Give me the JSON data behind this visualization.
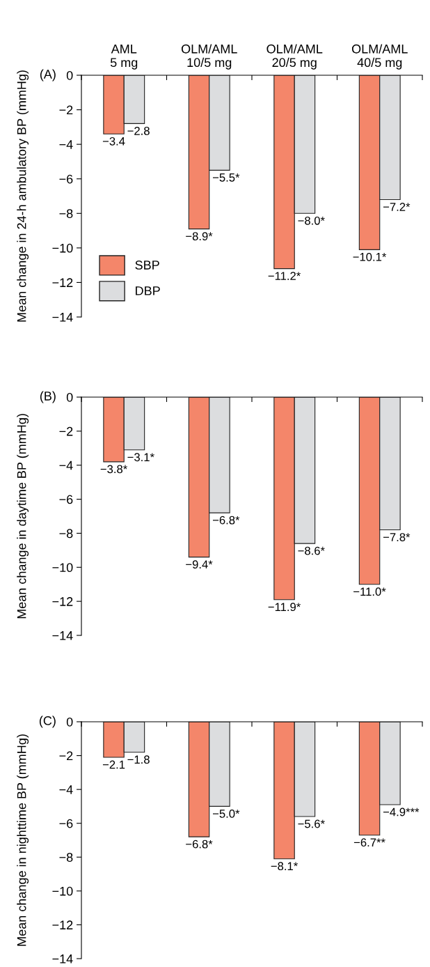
{
  "chart_data": [
    {
      "type": "bar",
      "title": "(A)",
      "ylabel": "Mean change in 24-h ambulatory BP (mmHg)",
      "categories": [
        "AML\n5 mg",
        "OLM/AML\n10/5 mg",
        "OLM/AML\n20/5 mg",
        "OLM/AML\n40/5 mg"
      ],
      "series": [
        {
          "name": "SBP",
          "color": "#f4866a",
          "values": [
            -3.4,
            -8.9,
            -11.2,
            -10.1
          ],
          "value_labels": [
            "−3.4",
            "−8.9*",
            "−11.2*",
            "−10.1*"
          ]
        },
        {
          "name": "DBP",
          "color": "#dcdddf",
          "values": [
            -2.8,
            -5.5,
            -8.0,
            -7.2
          ],
          "value_labels": [
            "−2.8",
            "−5.5*",
            "−8.0*",
            "−7.2*"
          ]
        }
      ],
      "ylim": [
        -14,
        0
      ],
      "yticks": [
        {
          "value": -14,
          "label": "−14"
        },
        {
          "value": -12,
          "label": "−12"
        },
        {
          "value": -10,
          "label": "−10"
        },
        {
          "value": -8,
          "label": "−8"
        },
        {
          "value": -6,
          "label": "−6"
        },
        {
          "value": -4,
          "label": "−4"
        },
        {
          "value": -2,
          "label": "−2"
        },
        0
      ],
      "legend": "lower left",
      "grid": false
    },
    {
      "type": "bar",
      "title": "(B)",
      "ylabel": "Mean change in daytime BP (mmHg)",
      "categories": [
        null,
        null,
        null,
        null
      ],
      "series": [
        {
          "color": "#f4866a",
          "values": [
            -3.8,
            -9.4,
            -11.9,
            -11.0
          ],
          "value_labels": [
            "−3.8*",
            "−9.4*",
            "−11.9*",
            "−11.0*"
          ]
        },
        {
          "color": "#dcdddf",
          "values": [
            -3.1,
            -6.8,
            -8.6,
            -7.8
          ],
          "value_labels": [
            "−3.1*",
            "−6.8*",
            "−8.6*",
            "−7.8*"
          ]
        }
      ],
      "ylim": [
        -14,
        0
      ],
      "yticks": [
        {
          "value": -14,
          "label": "−14"
        },
        {
          "value": -12,
          "label": "−12"
        },
        {
          "value": -10,
          "label": "−10"
        },
        {
          "value": -8,
          "label": "−8"
        },
        {
          "value": -6,
          "label": "−6"
        },
        {
          "value": -4,
          "label": "−4"
        },
        {
          "value": -2,
          "label": "−2"
        },
        0
      ],
      "grid": false
    },
    {
      "type": "bar",
      "title": "(C)",
      "ylabel": "Mean change in nighttime BP (mmHg)",
      "categories": [
        null,
        null,
        null,
        null
      ],
      "series": [
        {
          "color": "#f4866a",
          "values": [
            -2.1,
            -6.8,
            -8.1,
            -6.7
          ],
          "value_labels": [
            "−2.1",
            "−6.8*",
            "−8.1*",
            "−6.7**"
          ]
        },
        {
          "color": "#dcdddf",
          "values": [
            -1.8,
            -5.0,
            -5.6,
            -4.9
          ],
          "value_labels": [
            "−1.8",
            "−5.0*",
            "−5.6*",
            "−4.9***"
          ]
        }
      ],
      "ylim": [
        -14,
        0
      ],
      "yticks": [
        {
          "value": -14,
          "label": "−14"
        },
        {
          "value": -12,
          "label": "−12"
        },
        {
          "value": -10,
          "label": "−10"
        },
        {
          "value": -8,
          "label": "−8"
        },
        {
          "value": -6,
          "label": "−6"
        },
        {
          "value": -4,
          "label": "−4"
        },
        {
          "value": -2,
          "label": "−2"
        },
        0
      ],
      "grid": false
    }
  ]
}
